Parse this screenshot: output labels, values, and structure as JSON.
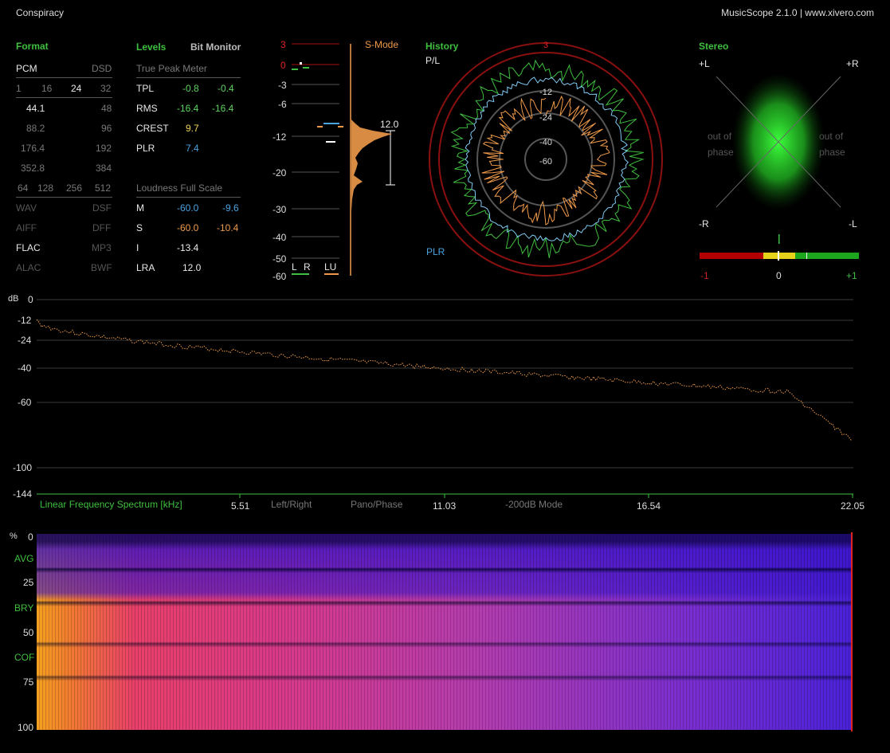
{
  "window": {
    "title": "Conspiracy",
    "app": "MusicScope 2.1.0 | www.xivero.com"
  },
  "format": {
    "header": "Format",
    "pcm_label": "PCM",
    "dsd_label": "DSD",
    "bit_depths": [
      "1",
      "16",
      "24",
      "32"
    ],
    "bit_depth_active": "24",
    "sample_rates": [
      [
        "44.1",
        "48"
      ],
      [
        "88.2",
        "96"
      ],
      [
        "176.4",
        "192"
      ],
      [
        "352.8",
        "384"
      ]
    ],
    "dsd_rates": [
      "64",
      "128",
      "256",
      "512"
    ],
    "containers": [
      [
        "WAV",
        "DSF"
      ],
      [
        "AIFF",
        "DFF"
      ],
      [
        "FLAC",
        "MP3"
      ],
      [
        "ALAC",
        "BWF"
      ]
    ]
  },
  "levels": {
    "header": "Levels",
    "bit_monitor": "Bit Monitor",
    "tpm_header": "True Peak Meter",
    "rows": [
      {
        "label": "TPL",
        "l": "-0.8",
        "r": "-0.4"
      },
      {
        "label": "RMS",
        "l": "-16.4",
        "r": "-16.4"
      },
      {
        "label": "CREST",
        "v": "9.7"
      },
      {
        "label": "PLR",
        "v": "7.4"
      }
    ],
    "lfs_header": "Loudness Full Scale",
    "loud": [
      {
        "label": "M",
        "a": "-60.0",
        "b": "-9.6"
      },
      {
        "label": "S",
        "a": "-60.0",
        "b": "-10.4"
      },
      {
        "label": "I",
        "a": "-13.4"
      },
      {
        "label": "LRA",
        "a": "12.0"
      }
    ]
  },
  "meter": {
    "scale": [
      "3",
      "0",
      "-3",
      "-6",
      "-12",
      "-20",
      "-30",
      "-40",
      "-50",
      "-60"
    ],
    "s_mode": "S-Mode",
    "lra_value": "12.0",
    "l": "L",
    "r": "R",
    "lu": "LU"
  },
  "history": {
    "header": "History",
    "pl": "P/L",
    "plr": "PLR",
    "rings": [
      "3",
      "-12",
      "-24",
      "-40",
      "-60"
    ]
  },
  "stereo": {
    "header": "Stereo",
    "pl": "+L",
    "pr": "+R",
    "mr": "-R",
    "ml": "-L",
    "oop1": "out of",
    "oop2": "phase",
    "corr_labels": [
      "-1",
      "0",
      "+1"
    ]
  },
  "spectrum": {
    "db_label": "dB",
    "label": "Linear Frequency Spectrum [kHz]",
    "y_ticks": [
      "0",
      "-12",
      "-24",
      "-40",
      "-60",
      "-100",
      "-144"
    ],
    "x_ticks": [
      "5.51",
      "11.03",
      "16.54",
      "22.05"
    ],
    "buttons": [
      "Left/Right",
      "Pano/Phase",
      "-200dB Mode"
    ]
  },
  "spectrogram": {
    "y_ticks": [
      "%",
      "0",
      "25",
      "50",
      "75",
      "100"
    ],
    "modes": [
      "AVG",
      "BRY",
      "COF"
    ]
  },
  "colors": {
    "accent_green": "#3fbf3f",
    "orange": "#ef9a4a",
    "blue": "#4aa3df",
    "red": "#cc2222"
  }
}
